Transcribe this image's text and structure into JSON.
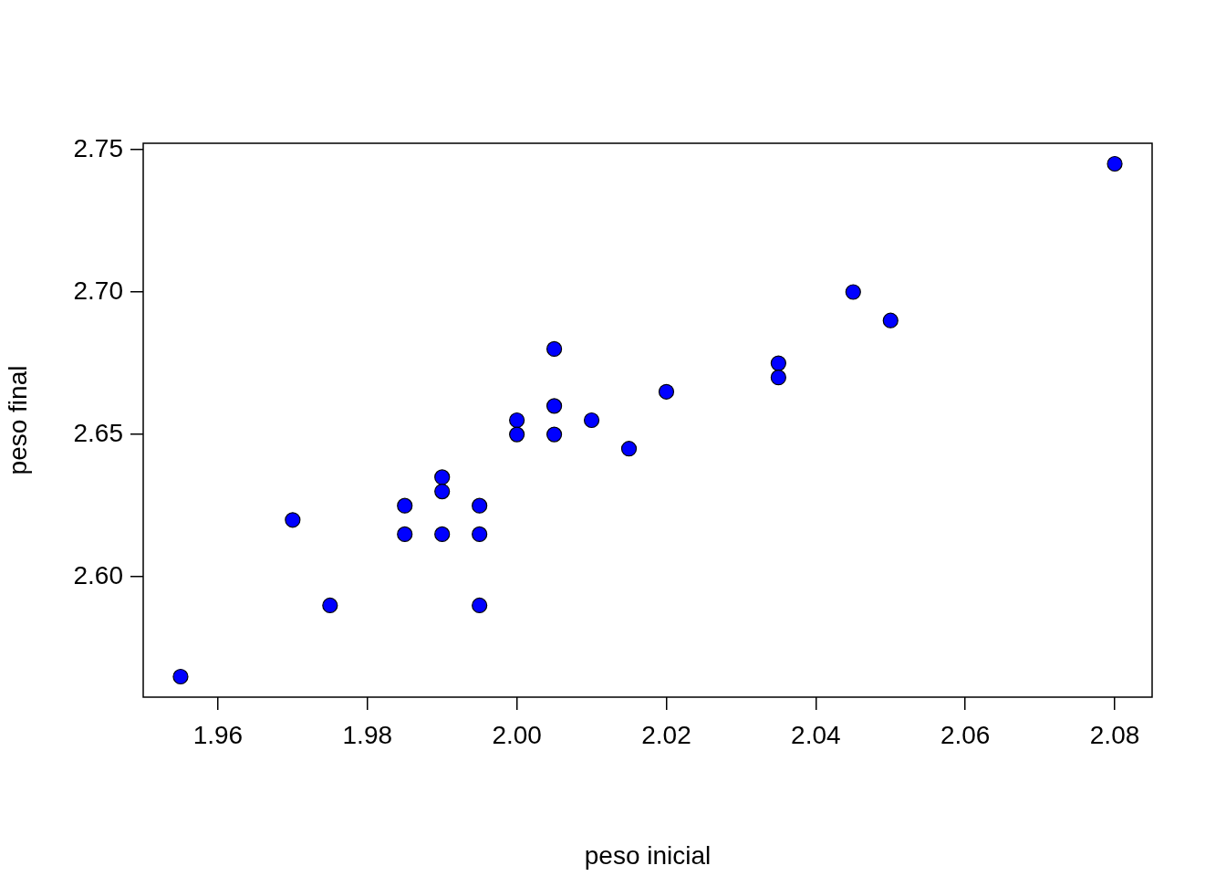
{
  "chart_data": {
    "type": "scatter",
    "xlabel": "peso inicial",
    "ylabel": "peso final",
    "marker": "circle",
    "grid": false,
    "legend": false,
    "xlim": [
      1.95,
      2.085
    ],
    "ylim": [
      2.5578,
      2.7522
    ],
    "xticks": [
      {
        "value": 1.96,
        "label": "1.96"
      },
      {
        "value": 1.98,
        "label": "1.98"
      },
      {
        "value": 2.0,
        "label": "2.00"
      },
      {
        "value": 2.02,
        "label": "2.02"
      },
      {
        "value": 2.04,
        "label": "2.04"
      },
      {
        "value": 2.06,
        "label": "2.06"
      },
      {
        "value": 2.08,
        "label": "2.08"
      }
    ],
    "yticks": [
      {
        "value": 2.6,
        "label": "2.60"
      },
      {
        "value": 2.65,
        "label": "2.65"
      },
      {
        "value": 2.7,
        "label": "2.70"
      },
      {
        "value": 2.75,
        "label": "2.75"
      }
    ],
    "series": [
      {
        "color": "#0000ff",
        "x": [
          1.955,
          1.97,
          1.975,
          1.985,
          1.985,
          1.99,
          1.99,
          1.99,
          1.995,
          1.995,
          1.995,
          2.0,
          2.0,
          2.005,
          2.005,
          2.005,
          2.01,
          2.015,
          2.02,
          2.035,
          2.035,
          2.045,
          2.05,
          2.08
        ],
        "values": [
          2.565,
          2.62,
          2.59,
          2.625,
          2.615,
          2.635,
          2.63,
          2.615,
          2.625,
          2.615,
          2.59,
          2.655,
          2.65,
          2.68,
          2.66,
          2.65,
          2.655,
          2.645,
          2.665,
          2.675,
          2.67,
          2.7,
          2.69,
          2.745
        ]
      }
    ]
  }
}
